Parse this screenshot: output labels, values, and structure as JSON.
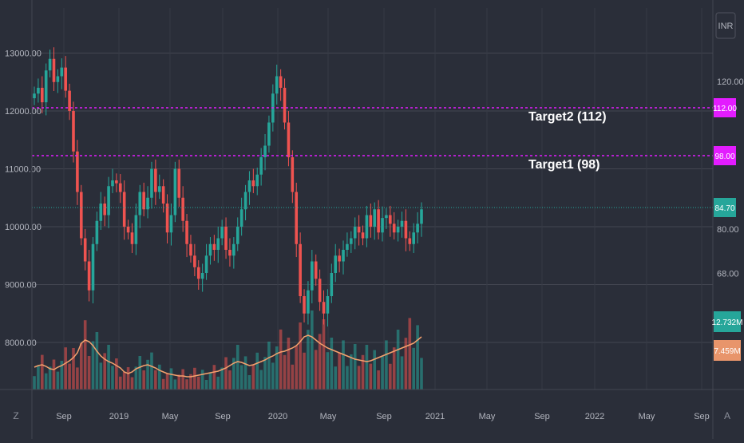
{
  "chart_data": {
    "type": "candlestick",
    "left_axis": {
      "ticks": [
        "13000.00",
        "12000.00",
        "11000.00",
        "10000.00",
        "9000.00",
        "8000.00"
      ],
      "values": [
        13000,
        12000,
        11000,
        10000,
        9000,
        8000
      ]
    },
    "right_axis": {
      "currency": "INR",
      "ticks": [
        "120.00",
        "80.00",
        "68.00"
      ],
      "values": [
        120,
        80,
        68
      ]
    },
    "x_axis": {
      "ticks": [
        "Sep",
        "2019",
        "May",
        "Sep",
        "2020",
        "May",
        "Sep",
        "2021",
        "May",
        "Sep",
        "2022",
        "May",
        "Sep"
      ]
    },
    "target_lines": [
      {
        "label": "Target2 (112)",
        "value": 112,
        "badge": "112.00"
      },
      {
        "label": "Target1 (98)",
        "value": 98,
        "badge": "98.00"
      }
    ],
    "last_price": {
      "value": 84.7,
      "badge": "84.70"
    },
    "volume_badges": [
      {
        "text": "12.732M",
        "color": "#26a69a"
      },
      {
        "text": "7.459M",
        "color": "#e8956b"
      }
    ],
    "colors": {
      "up": "#26a69a",
      "down": "#ef5350",
      "target": "#e31cff",
      "volume_ma": "#f5a16d",
      "background": "#2a2e39"
    },
    "close_path": [
      12300,
      12400,
      12150,
      12700,
      12900,
      12500,
      12600,
      12750,
      12350,
      12000,
      11300,
      10600,
      9800,
      9400,
      8900,
      9700,
      10100,
      10400,
      10200,
      10700,
      10800,
      10750,
      10600,
      10000,
      9900,
      9700,
      10200,
      10600,
      10300,
      10500,
      11000,
      10600,
      10700,
      10400,
      9900,
      10200,
      11000,
      10500,
      10100,
      9700,
      9500,
      9300,
      9100,
      9200,
      9500,
      9700,
      9600,
      9800,
      10000,
      9600,
      9500,
      9700,
      10000,
      10300,
      10600,
      10800,
      10700,
      10900,
      11200,
      11400,
      11800,
      12300,
      12600,
      12400,
      11800,
      11200,
      10600,
      9700,
      8800,
      8500,
      8900,
      9400,
      9100,
      8700,
      8500,
      8800,
      9200,
      9500,
      9400,
      9600,
      9700,
      9800,
      10000,
      9900,
      9800,
      10200,
      10000,
      10300,
      9900,
      10150,
      10200,
      10050,
      9900,
      10000,
      10100,
      9800,
      9700,
      9900,
      10050,
      10300
    ],
    "volume_path": [
      28,
      30,
      31,
      29,
      26,
      25,
      28,
      30,
      33,
      36,
      40,
      46,
      58,
      62,
      60,
      55,
      48,
      42,
      38,
      35,
      33,
      30,
      27,
      22,
      20,
      22,
      26,
      28,
      30,
      31,
      29,
      27,
      24,
      22,
      20,
      19,
      18,
      17,
      17,
      16,
      16,
      17,
      18,
      19,
      20,
      21,
      22,
      23,
      25,
      27,
      30,
      33,
      35,
      34,
      32,
      30,
      31,
      33,
      35,
      37,
      40,
      42,
      45,
      47,
      48,
      50,
      52,
      55,
      60,
      66,
      68,
      66,
      62,
      58,
      55,
      52,
      50,
      48,
      46,
      44,
      42,
      40,
      38,
      37,
      36,
      35,
      36,
      38,
      40,
      42,
      44,
      46,
      48,
      50,
      52,
      54,
      56,
      58,
      62,
      66
    ]
  }
}
